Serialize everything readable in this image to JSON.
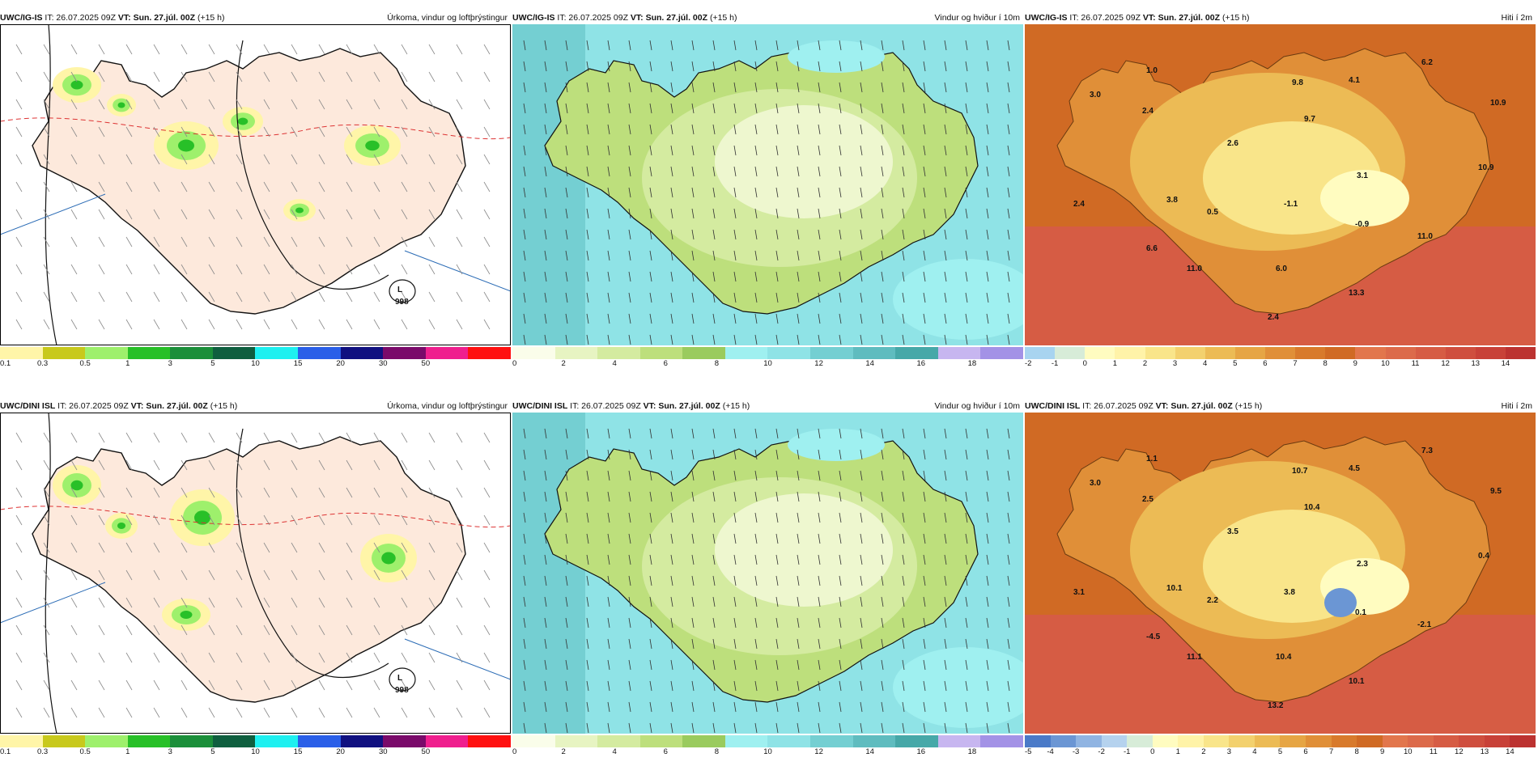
{
  "init_time": "IT: 26.07.2025 09Z",
  "valid_time": "VT: Sun. 27.júl. 00Z",
  "lead_time": "(+15 h)",
  "rows": [
    {
      "model": "UWC/IG-IS",
      "panels": [
        {
          "title": "Úrkoma, vindur og loftþrýstingur",
          "low_label": "L",
          "low_value": "998",
          "ticks": [
            "0.1",
            "0.3",
            "0.5",
            "1",
            "3",
            "5",
            "10",
            "15",
            "20",
            "30",
            "50"
          ]
        },
        {
          "title": "Vindur og hviður í 10m",
          "ticks": [
            "0",
            "2",
            "4",
            "6",
            "8",
            "10",
            "12",
            "14",
            "16",
            "18"
          ]
        },
        {
          "title": "Hiti í 2m",
          "ticks": [
            "-2",
            "-1",
            "0",
            "1",
            "2",
            "3",
            "4",
            "5",
            "6",
            "7",
            "8",
            "9",
            "10",
            "11",
            "12",
            "13",
            "14"
          ],
          "values": [
            "1.0",
            "3.0",
            "2.4",
            "2.6",
            "9.8",
            "4.1",
            "6.2",
            "10.9",
            "9.7",
            "3.1",
            "10.9",
            "2.4",
            "3.8",
            "0.5",
            "-1.1",
            "-0.9",
            "11.0",
            "6.6",
            "11.0",
            "6.0",
            "13.3",
            "2.4"
          ]
        }
      ]
    },
    {
      "model": "UWC/DINI ISL",
      "panels": [
        {
          "title": "Úrkoma, vindur og loftþrýstingur",
          "low_label": "L",
          "low_value": "998",
          "ticks": [
            "0.1",
            "0.3",
            "0.5",
            "1",
            "3",
            "5",
            "10",
            "15",
            "20",
            "30",
            "50"
          ]
        },
        {
          "title": "Vindur og hviður í 10m",
          "ticks": [
            "0",
            "2",
            "4",
            "6",
            "8",
            "10",
            "12",
            "14",
            "16",
            "18"
          ]
        },
        {
          "title": "Hiti í 2m",
          "ticks": [
            "-5",
            "-4",
            "-3",
            "-2",
            "-1",
            "0",
            "1",
            "2",
            "3",
            "4",
            "5",
            "6",
            "7",
            "8",
            "9",
            "10",
            "11",
            "12",
            "13",
            "14"
          ],
          "values": [
            "1.1",
            "3.0",
            "2.5",
            "3.5",
            "10.7",
            "4.5",
            "7.3",
            "9.5",
            "10.4",
            "2.3",
            "0.4",
            "3.1",
            "10.1",
            "2.2",
            "3.8",
            "0.1",
            "-2.1",
            "-4.5",
            "11.1",
            "10.4",
            "10.1",
            "13.2"
          ]
        }
      ]
    }
  ],
  "colors": {
    "precip": [
      "#fff5a8",
      "#c8c91c",
      "#9ef06c",
      "#28c028",
      "#1b8f3a",
      "#0f5f3f",
      "#1ef0f0",
      "#2a5fe8",
      "#101080",
      "#7a0a6a",
      "#ef1f8e",
      "#ff1010"
    ],
    "wind": [
      "#fafdea",
      "#e7f4c2",
      "#d4eba0",
      "#bddf7c",
      "#9acb5e",
      "#9ff0f0",
      "#8fe3e6",
      "#74cfd2",
      "#5fbcbf",
      "#46a8a8",
      "#c7b6f0",
      "#a392e6"
    ],
    "temp": [
      "#a8d4f0",
      "#d7ecd8",
      "#fffcc0",
      "#fff3a8",
      "#f9e58a",
      "#f3d16e",
      "#ecbb55",
      "#e6a544",
      "#e08f38",
      "#d87a2c",
      "#d06a24",
      "#e2764c",
      "#dc6a4a",
      "#d65c44",
      "#cf4e3e",
      "#c84138",
      "#bc3230"
    ],
    "temp_cold": [
      "#4a7ac8",
      "#6b96d4",
      "#90b4e2",
      "#b5d2ee"
    ]
  }
}
